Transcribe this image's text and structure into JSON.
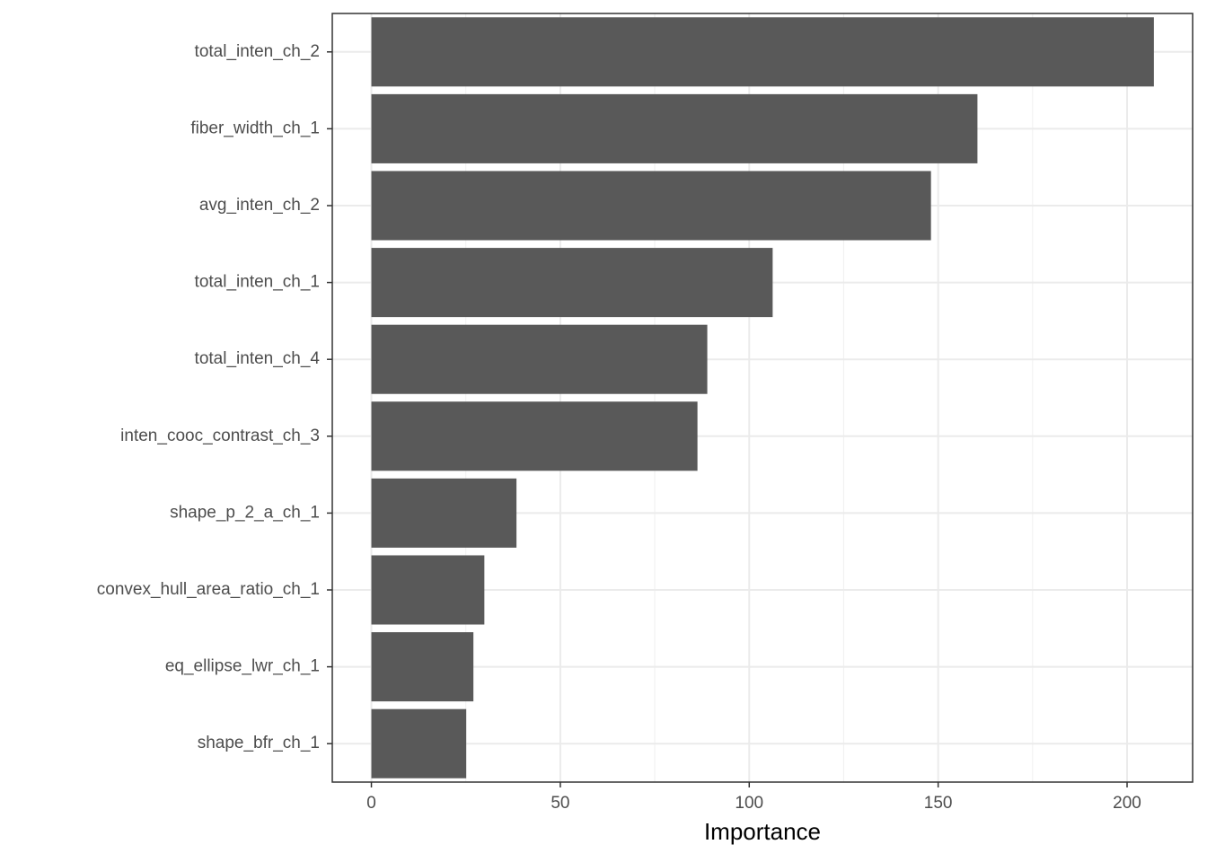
{
  "chart_data": {
    "type": "barh",
    "x_label": "Importance",
    "categories": [
      "total_inten_ch_2",
      "fiber_width_ch_1",
      "avg_inten_ch_2",
      "total_inten_ch_1",
      "total_inten_ch_4",
      "inten_cooc_contrast_ch_3",
      "shape_p_2_a_ch_1",
      "convex_hull_area_ratio_ch_1",
      "eq_ellipse_lwr_ch_1",
      "shape_bfr_ch_1"
    ],
    "values": [
      207.1,
      160.4,
      148.1,
      106.2,
      88.9,
      86.3,
      38.4,
      29.9,
      27.0,
      25.1
    ],
    "color": "#595959",
    "xlim": [
      -10.35,
      217.35
    ],
    "xticks": [
      0,
      50,
      100,
      150,
      200
    ],
    "grid": true
  }
}
